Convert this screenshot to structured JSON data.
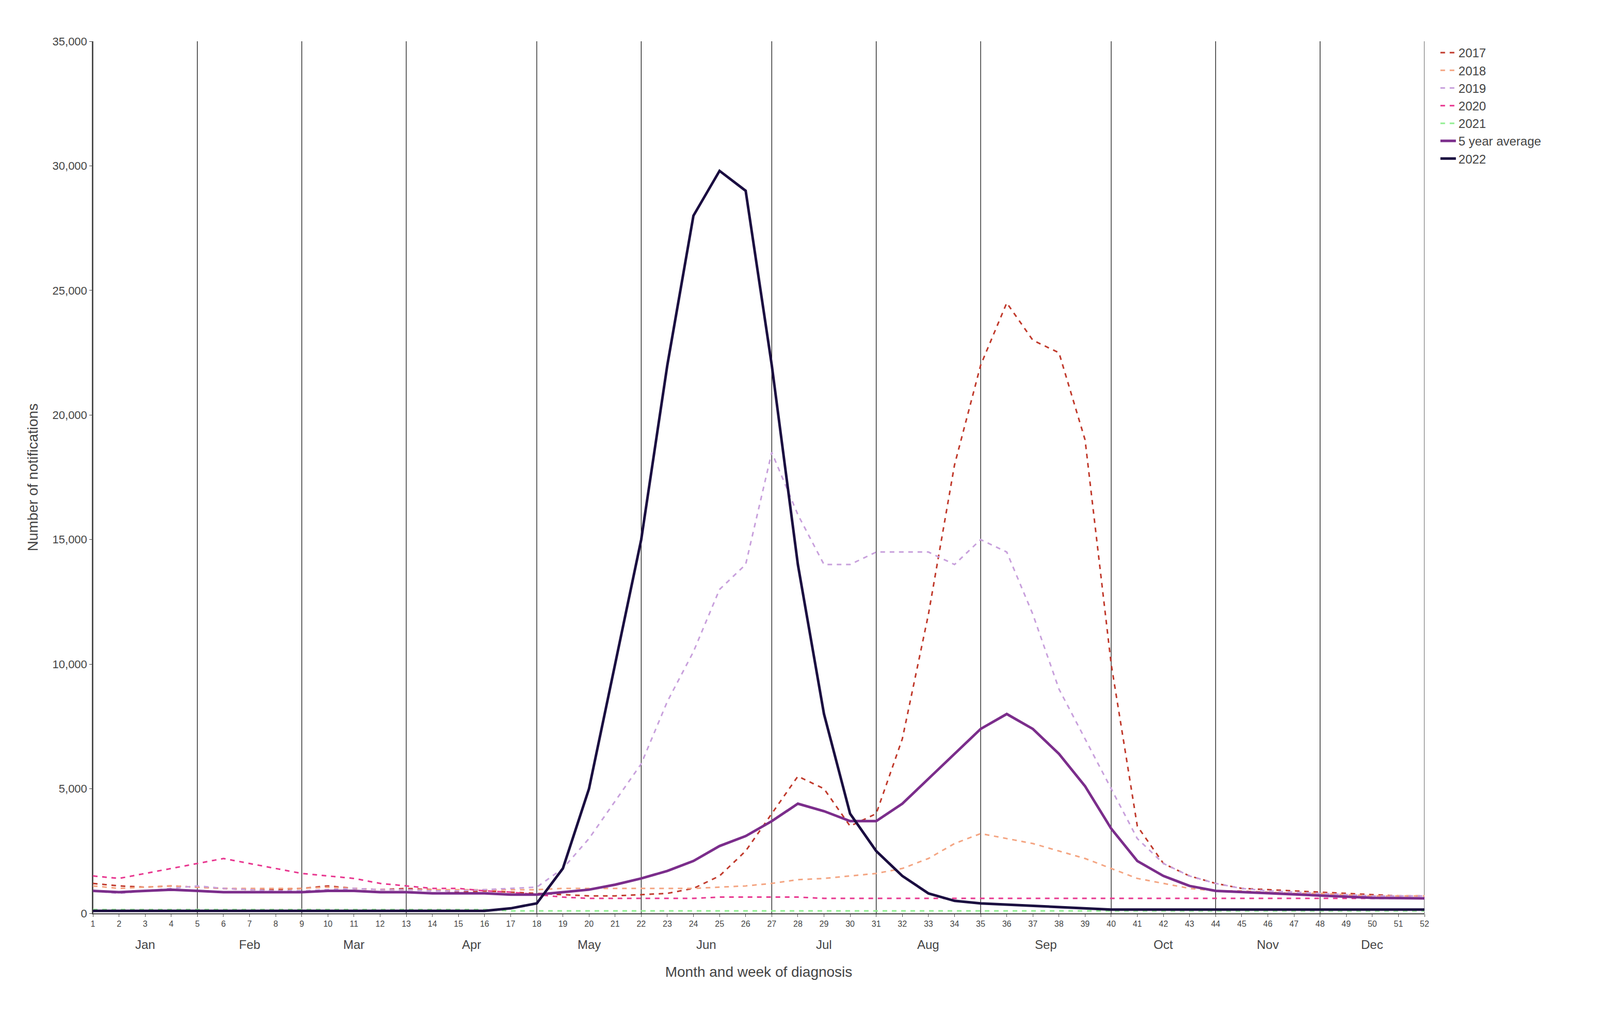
{
  "chart_data": {
    "type": "line",
    "xlabel": "Month and week of diagnosis",
    "ylabel": "Number of notifications",
    "x": [
      1,
      2,
      3,
      4,
      5,
      6,
      7,
      8,
      9,
      10,
      11,
      12,
      13,
      14,
      15,
      16,
      17,
      18,
      19,
      20,
      21,
      22,
      23,
      24,
      25,
      26,
      27,
      28,
      29,
      30,
      31,
      32,
      33,
      34,
      35,
      36,
      37,
      38,
      39,
      40,
      41,
      42,
      43,
      44,
      45,
      46,
      47,
      48,
      49,
      50,
      51,
      52
    ],
    "xlim": [
      1,
      52
    ],
    "xticks": [
      1,
      2,
      3,
      4,
      5,
      6,
      7,
      8,
      9,
      10,
      11,
      12,
      13,
      14,
      15,
      16,
      17,
      18,
      19,
      20,
      21,
      22,
      23,
      24,
      25,
      26,
      27,
      28,
      29,
      30,
      31,
      32,
      33,
      34,
      35,
      36,
      37,
      38,
      39,
      40,
      41,
      42,
      43,
      44,
      45,
      46,
      47,
      48,
      49,
      50,
      51,
      52
    ],
    "ylim": [
      0,
      35000
    ],
    "yticks": [
      0,
      {
        "value": 5000,
        "label": "5,000"
      },
      {
        "value": 10000,
        "label": "10,000"
      },
      {
        "value": 15000,
        "label": "15,000"
      },
      {
        "value": 20000,
        "label": "20,000"
      },
      {
        "value": 25000,
        "label": "25,000"
      },
      {
        "value": 30000,
        "label": "30,000"
      },
      {
        "value": 35000,
        "label": "35,000"
      }
    ],
    "grid": false,
    "legend": "upper right",
    "vlines": [
      1,
      5,
      9,
      13,
      18,
      22,
      27,
      31,
      35,
      40,
      44,
      48,
      52
    ],
    "annotations": [
      {
        "text": "Jan",
        "x": 3
      },
      {
        "text": "Feb",
        "x": 7
      },
      {
        "text": "Mar",
        "x": 11
      },
      {
        "text": "Apr",
        "x": 15.5
      },
      {
        "text": "May",
        "x": 20
      },
      {
        "text": "Jun",
        "x": 24.5
      },
      {
        "text": "Jul",
        "x": 29
      },
      {
        "text": "Aug",
        "x": 33
      },
      {
        "text": "Sep",
        "x": 37.5
      },
      {
        "text": "Oct",
        "x": 42
      },
      {
        "text": "Nov",
        "x": 46
      },
      {
        "text": "Dec",
        "x": 50
      }
    ],
    "series": [
      {
        "name": "2017",
        "color": "#C0392B",
        "line_style": "dashed",
        "values": [
          1200,
          1100,
          1050,
          1100,
          1050,
          1000,
          950,
          950,
          1000,
          1100,
          1000,
          950,
          1000,
          950,
          850,
          900,
          850,
          800,
          750,
          700,
          700,
          750,
          800,
          1000,
          1500,
          2500,
          4000,
          5500,
          5000,
          3500,
          4000,
          7000,
          12000,
          18000,
          22000,
          24500,
          23000,
          22500,
          19000,
          10000,
          3500,
          2000,
          1500,
          1200,
          1000,
          950,
          900,
          850,
          800,
          750,
          700,
          700
        ]
      },
      {
        "name": "2018",
        "color": "#F4A582",
        "line_style": "dashed",
        "values": [
          1100,
          1000,
          1050,
          1100,
          1050,
          1000,
          1000,
          1000,
          1000,
          1050,
          1000,
          950,
          950,
          950,
          950,
          950,
          950,
          950,
          1000,
          1000,
          1000,
          1000,
          1000,
          1000,
          1050,
          1100,
          1200,
          1350,
          1400,
          1500,
          1600,
          1800,
          2200,
          2800,
          3200,
          3000,
          2800,
          2500,
          2200,
          1800,
          1400,
          1200,
          1000,
          900,
          900,
          850,
          800,
          800,
          750,
          700,
          700,
          700
        ]
      },
      {
        "name": "2019",
        "color": "#C8A0DC",
        "line_style": "dashed",
        "values": [
          900,
          800,
          900,
          1000,
          1100,
          1000,
          950,
          900,
          900,
          950,
          1000,
          950,
          950,
          900,
          900,
          950,
          1000,
          1050,
          1800,
          3000,
          4500,
          6000,
          8500,
          10500,
          13000,
          14000,
          18500,
          16000,
          14000,
          14000,
          14500,
          14500,
          14500,
          14000,
          15000,
          14500,
          12000,
          9000,
          7000,
          5000,
          3000,
          2000,
          1500,
          1200,
          1000,
          900,
          850,
          800,
          750,
          700,
          700,
          700
        ]
      },
      {
        "name": "2020",
        "color": "#E8368F",
        "line_style": "dashed",
        "values": [
          1500,
          1400,
          1600,
          1800,
          2000,
          2200,
          2000,
          1800,
          1600,
          1500,
          1400,
          1200,
          1100,
          1000,
          1000,
          900,
          850,
          750,
          650,
          600,
          600,
          600,
          600,
          600,
          650,
          650,
          650,
          650,
          600,
          600,
          600,
          600,
          600,
          600,
          600,
          600,
          600,
          600,
          600,
          600,
          600,
          600,
          600,
          600,
          600,
          600,
          600,
          600,
          600,
          600,
          600,
          600
        ]
      },
      {
        "name": "2021",
        "color": "#90EE90",
        "line_style": "dashed",
        "values": [
          150,
          150,
          150,
          150,
          150,
          150,
          150,
          150,
          150,
          150,
          150,
          150,
          150,
          150,
          150,
          150,
          100,
          100,
          100,
          100,
          100,
          100,
          100,
          100,
          100,
          100,
          100,
          100,
          100,
          100,
          100,
          100,
          100,
          100,
          100,
          100,
          100,
          100,
          100,
          100,
          100,
          100,
          100,
          100,
          100,
          100,
          100,
          100,
          100,
          100,
          100,
          100
        ]
      },
      {
        "name": "5 year average",
        "color": "#7B2D8B",
        "line_style": "solid",
        "values": [
          900,
          850,
          900,
          950,
          900,
          850,
          850,
          850,
          850,
          900,
          900,
          850,
          850,
          800,
          800,
          800,
          750,
          750,
          850,
          950,
          1150,
          1400,
          1700,
          2100,
          2700,
          3100,
          3700,
          4400,
          4100,
          3700,
          3700,
          4400,
          5400,
          6400,
          7400,
          8000,
          7400,
          6400,
          5100,
          3400,
          2100,
          1500,
          1100,
          900,
          850,
          800,
          750,
          700,
          650,
          620,
          610,
          600
        ]
      },
      {
        "name": "2022",
        "color": "#1A0D40",
        "line_style": "solid",
        "values": [
          100,
          100,
          100,
          100,
          100,
          100,
          100,
          100,
          100,
          100,
          100,
          100,
          100,
          100,
          100,
          100,
          200,
          400,
          1800,
          5000,
          10000,
          15000,
          22000,
          28000,
          29800,
          29000,
          22000,
          14000,
          8000,
          4000,
          2500,
          1500,
          800,
          500,
          400,
          350,
          300,
          250,
          200,
          150,
          150,
          150,
          150,
          150,
          150,
          150,
          150,
          150,
          150,
          150,
          150,
          150
        ]
      }
    ]
  }
}
